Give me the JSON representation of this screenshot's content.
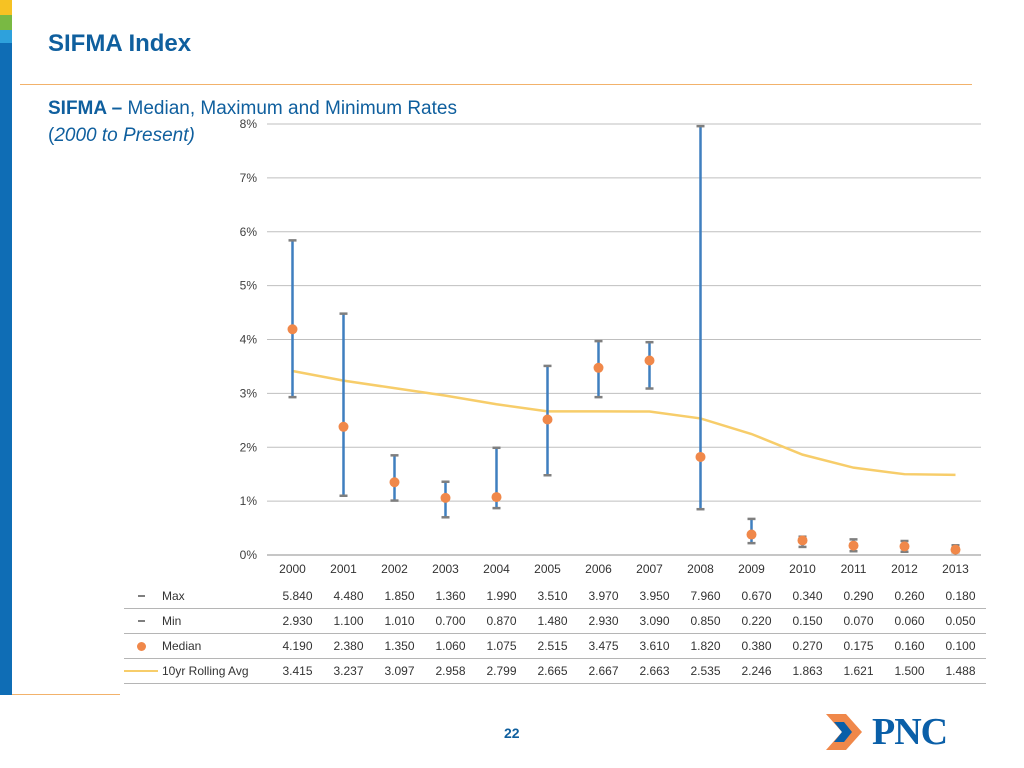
{
  "title": "SIFMA Index",
  "subtitle": {
    "bold": "SIFMA –",
    "rest": " Median, Maximum and Minimum Rates",
    "line2_open": "(",
    "line2_italic": "2000 to Present)"
  },
  "page_number": "22",
  "brand": {
    "logo_text": "PNC",
    "color": "#0a5fa8",
    "accent": "#f0884a",
    "title_color": "#0f5f9e",
    "sidebar_color": "#0f6db5"
  },
  "chart_data": {
    "type": "line",
    "categories": [
      "2000",
      "2001",
      "2002",
      "2003",
      "2004",
      "2005",
      "2006",
      "2007",
      "2008",
      "2009",
      "2010",
      "2011",
      "2012",
      "2013"
    ],
    "y_tick_labels": [
      "0%",
      "1%",
      "2%",
      "3%",
      "4%",
      "5%",
      "6%",
      "7%",
      "8%"
    ],
    "ylim": [
      0,
      8
    ],
    "grid": true,
    "series": [
      {
        "name": "Max",
        "color": "#7f7f7f",
        "marker": "dash",
        "values": [
          "5.840",
          "4.480",
          "1.850",
          "1.360",
          "1.990",
          "3.510",
          "3.970",
          "3.950",
          "7.960",
          "0.670",
          "0.340",
          "0.290",
          "0.260",
          "0.180"
        ]
      },
      {
        "name": "Min",
        "color": "#7f7f7f",
        "marker": "dash",
        "values": [
          "2.930",
          "1.100",
          "1.010",
          "0.700",
          "0.870",
          "1.480",
          "2.930",
          "3.090",
          "0.850",
          "0.220",
          "0.150",
          "0.070",
          "0.060",
          "0.050"
        ]
      },
      {
        "name": "Median",
        "color": "#f0884a",
        "marker": "dot",
        "values": [
          "4.190",
          "2.380",
          "1.350",
          "1.060",
          "1.075",
          "2.515",
          "3.475",
          "3.610",
          "1.820",
          "0.380",
          "0.270",
          "0.175",
          "0.160",
          "0.100"
        ]
      },
      {
        "name": "10yr Rolling Avg",
        "color": "#f7cd6a",
        "marker": "line",
        "values": [
          "3.415",
          "3.237",
          "3.097",
          "2.958",
          "2.799",
          "2.665",
          "2.667",
          "2.663",
          "2.535",
          "2.246",
          "1.863",
          "1.621",
          "1.500",
          "1.488"
        ]
      }
    ],
    "range_bar_color": "#3f7fbf"
  }
}
